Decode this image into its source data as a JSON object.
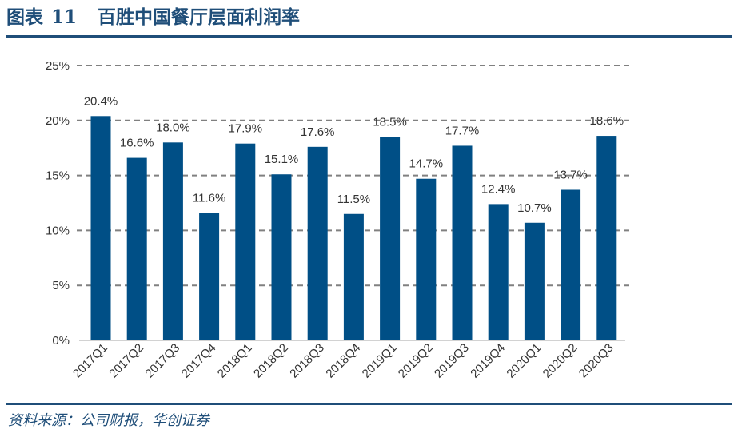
{
  "figure": {
    "label": "图表",
    "number": "11",
    "title": "百胜中国餐厅层面利润率"
  },
  "source": "资料来源：公司财报，华创证券",
  "colors": {
    "bar": "#004f86",
    "title": "#1f4e79",
    "grid": "#808080"
  },
  "chart_data": {
    "type": "bar",
    "categories": [
      "2017Q1",
      "2017Q2",
      "2017Q3",
      "2017Q4",
      "2018Q1",
      "2018Q2",
      "2018Q3",
      "2018Q4",
      "2019Q1",
      "2019Q2",
      "2019Q3",
      "2019Q4",
      "2020Q1",
      "2020Q2",
      "2020Q3"
    ],
    "values": [
      20.4,
      16.6,
      18.0,
      11.6,
      17.9,
      15.1,
      17.6,
      11.5,
      18.5,
      14.7,
      17.7,
      12.4,
      10.7,
      13.7,
      18.6
    ],
    "value_labels": [
      "20.4%",
      "16.6%",
      "18.0%",
      "11.6%",
      "17.9%",
      "15.1%",
      "17.6%",
      "11.5%",
      "18.5%",
      "14.7%",
      "17.7%",
      "12.4%",
      "10.7%",
      "13.7%",
      "18.6%"
    ],
    "y_ticks": [
      0,
      5,
      10,
      15,
      20,
      25
    ],
    "y_tick_labels": [
      "0%",
      "5%",
      "10%",
      "15%",
      "20%",
      "25%"
    ],
    "ylim": [
      0,
      25
    ],
    "grid": "dashed horizontal",
    "legend": "none",
    "xlabel": "",
    "ylabel": ""
  }
}
